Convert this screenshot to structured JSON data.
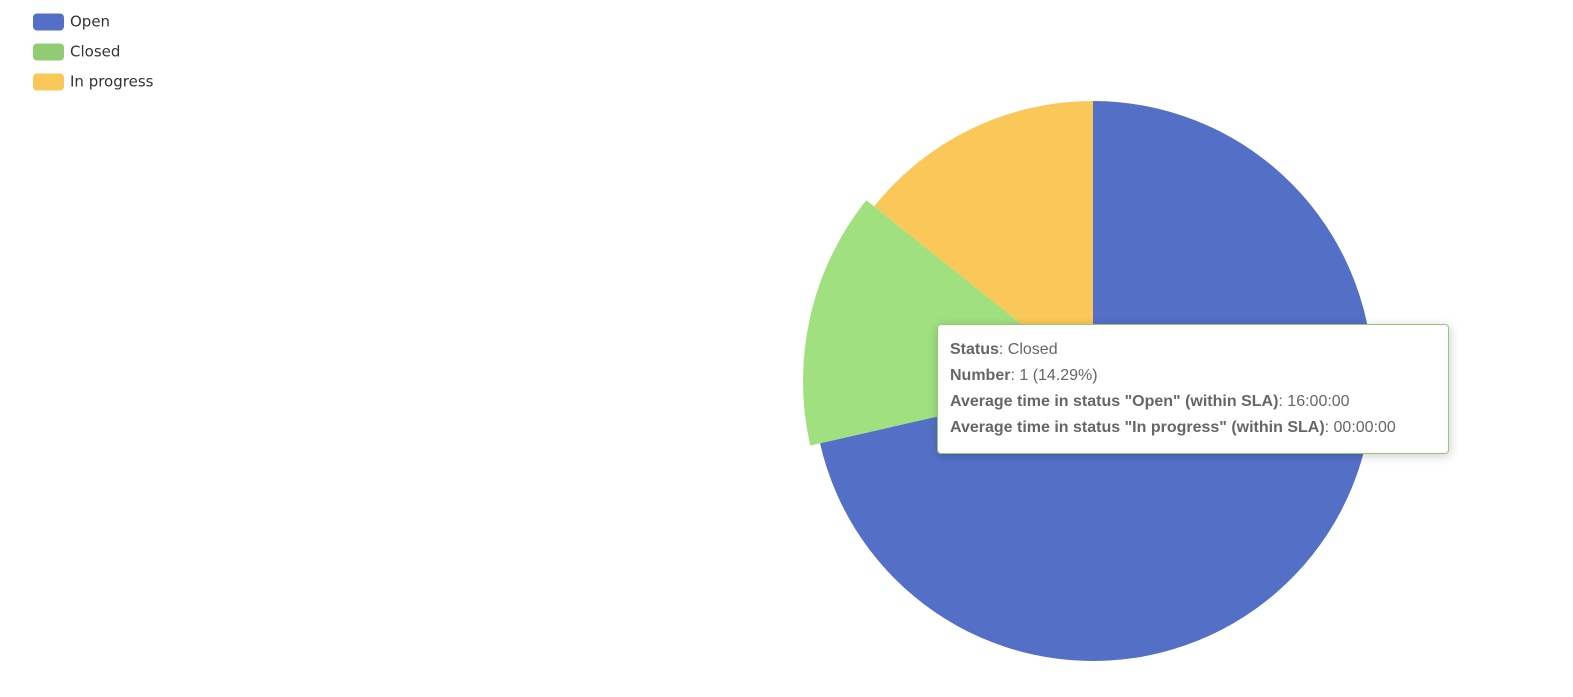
{
  "chart_data": {
    "type": "pie",
    "categories": [
      "Open",
      "Closed",
      "In progress"
    ],
    "values": [
      5,
      1,
      1
    ],
    "colors": [
      "#5470c6",
      "#91cc75",
      "#fac858"
    ],
    "legend": "top-left"
  },
  "tooltip": {
    "rows": [
      {
        "label": "Status",
        "value": "Closed"
      },
      {
        "label": "Number",
        "value": "1 (14.29%)"
      },
      {
        "label": "Average time in status \"Open\" (within SLA)",
        "value": "16:00:00"
      },
      {
        "label": "Average time in status \"In progress\" (within SLA)",
        "value": "00:00:00"
      }
    ]
  }
}
